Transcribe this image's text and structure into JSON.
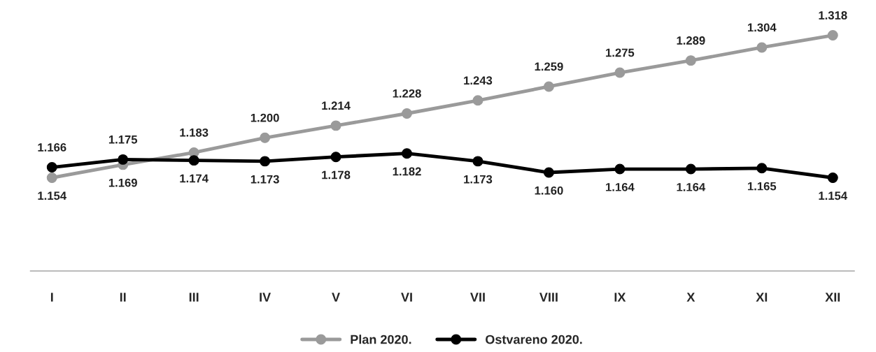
{
  "chart_data": {
    "type": "line",
    "categories": [
      "I",
      "II",
      "III",
      "IV",
      "V",
      "VI",
      "VII",
      "VIII",
      "IX",
      "X",
      "XI",
      "XII"
    ],
    "series": [
      {
        "name": "Plan 2020.",
        "color": "#9a9a9a",
        "values": [
          1.154,
          1.169,
          1.183,
          1.2,
          1.214,
          1.228,
          1.243,
          1.259,
          1.275,
          1.289,
          1.304,
          1.318
        ],
        "value_labels": [
          "1.154",
          "1.169",
          "1.183",
          "1.200",
          "1.214",
          "1.228",
          "1.243",
          "1.259",
          "1.275",
          "1.289",
          "1.304",
          "1.318"
        ]
      },
      {
        "name": "Ostvareno 2020.",
        "color": "#000000",
        "values": [
          1.166,
          1.175,
          1.174,
          1.173,
          1.178,
          1.182,
          1.173,
          1.16,
          1.164,
          1.164,
          1.165,
          1.154
        ],
        "value_labels": [
          "1.166",
          "1.175",
          "1.174",
          "1.173",
          "1.178",
          "1.182",
          "1.173",
          "1.160",
          "1.164",
          "1.164",
          "1.165",
          "1.154"
        ]
      }
    ],
    "tick_labels": "x",
    "marker": "circle",
    "line_style": "solid",
    "legend": "bottom",
    "grid": false
  }
}
